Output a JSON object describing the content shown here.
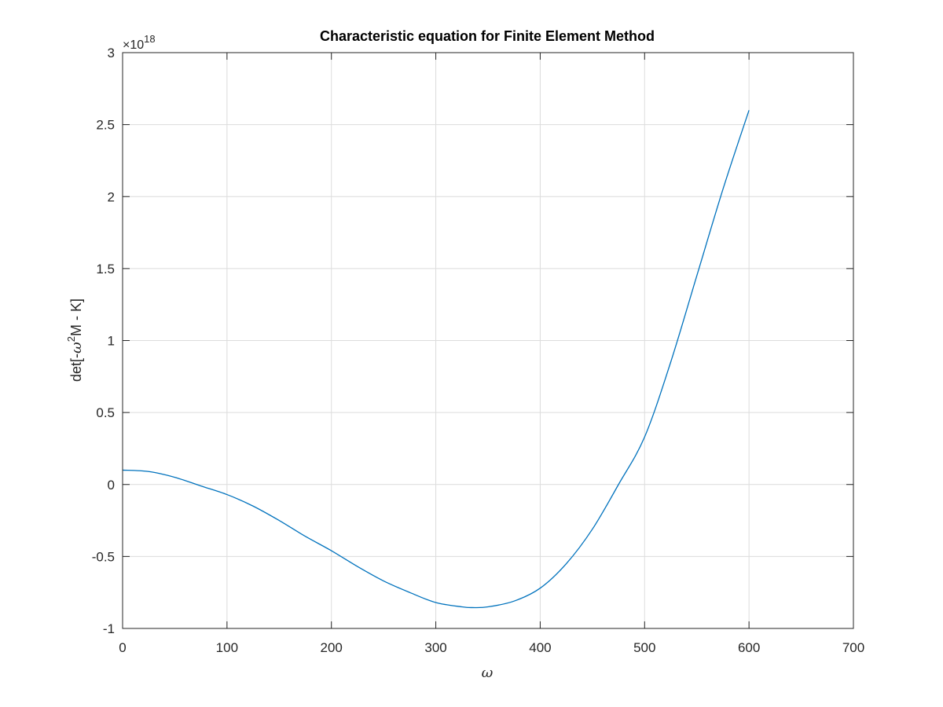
{
  "chart_data": {
    "type": "line",
    "title": "Characteristic equation for Finite Element Method",
    "xlabel": "ω",
    "ylabel": {
      "prefix": "det[-",
      "symbol": "ω",
      "superscript": "2",
      "suffix": "M - K]"
    },
    "y_exponent": {
      "base": "×10",
      "power": "18"
    },
    "xlim": [
      0,
      700
    ],
    "ylim": [
      -1,
      3
    ],
    "x_ticks": [
      0,
      100,
      200,
      300,
      400,
      500,
      600,
      700
    ],
    "x_tick_labels": [
      "0",
      "100",
      "200",
      "300",
      "400",
      "500",
      "600",
      "700"
    ],
    "y_ticks": [
      -1,
      -0.5,
      0,
      0.5,
      1,
      1.5,
      2,
      2.5,
      3
    ],
    "y_tick_labels": [
      "-1",
      "-0.5",
      "0",
      "0.5",
      "1",
      "1.5",
      "2",
      "2.5",
      "3"
    ],
    "grid": true,
    "series": [
      {
        "color": "#0072BD",
        "x": [
          0,
          25,
          50,
          75,
          100,
          125,
          150,
          175,
          200,
          225,
          250,
          275,
          300,
          325,
          335,
          350,
          375,
          400,
          425,
          450,
          475,
          500,
          525,
          550,
          575,
          600
        ],
        "y": [
          0.1,
          0.09,
          0.05,
          -0.01,
          -0.07,
          -0.15,
          -0.25,
          -0.36,
          -0.46,
          -0.57,
          -0.67,
          -0.75,
          -0.82,
          -0.85,
          -0.855,
          -0.85,
          -0.81,
          -0.72,
          -0.55,
          -0.31,
          0.0,
          0.33,
          0.85,
          1.45,
          2.05,
          2.6
        ]
      }
    ]
  }
}
